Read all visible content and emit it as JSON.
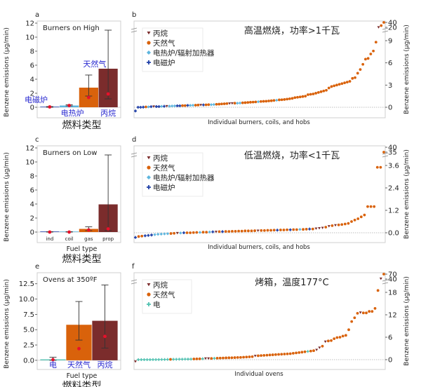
{
  "colors": {
    "propane": "#7b2c2c",
    "gas": "#d9620b",
    "electric": "#5fb6de",
    "induction": "#1f3fa8",
    "oven_electric": "#4fc1b0",
    "median": "#e8102a",
    "cat_label": "#2a2ad0"
  },
  "chart_data": [
    {
      "panel": "a",
      "type": "bar",
      "title": "Burners on High",
      "ylabel": "Benzene emissions (µg/min)",
      "xlabel_cn": "燃料类型",
      "xlabel": "",
      "ylim": [
        -1.5,
        12.3
      ],
      "yticks": [
        0,
        2,
        4,
        6,
        8,
        10,
        12
      ],
      "categories": [
        "电磁炉",
        "电热炉",
        "天然气",
        "丙烷"
      ],
      "category_label_style": "cn",
      "values": [
        0.0,
        0.25,
        2.8,
        5.5
      ],
      "err_low": [
        0.0,
        0.2,
        1.6,
        1.2
      ],
      "err_high": [
        0.1,
        0.35,
        4.6,
        11.0
      ],
      "medians": [
        0.05,
        0.25,
        1.4,
        1.9
      ],
      "bar_colors": [
        "induction",
        "electric",
        "gas",
        "propane"
      ]
    },
    {
      "panel": "b",
      "type": "scatter",
      "title": "高温燃烧，功率>1千瓦",
      "xlabel": "Individual burners, coils, and hobs",
      "ylabel": "Benzene emissions (µg/min)",
      "yticks_lower": [
        0,
        3,
        6,
        9
      ],
      "yticks_upper": [
        20,
        40
      ],
      "legend": [
        "丙烷",
        "天然气",
        "电热炉/辐射加热器",
        "电磁炉"
      ],
      "legend_keys": [
        "propane",
        "gas",
        "electric",
        "induction"
      ],
      "points": [
        [
          -0.5,
          "induction"
        ],
        [
          0,
          "induction"
        ],
        [
          0,
          "induction"
        ],
        [
          0.02,
          "induction"
        ],
        [
          0.05,
          "gas"
        ],
        [
          0.05,
          "electric"
        ],
        [
          0.08,
          "induction"
        ],
        [
          0.1,
          "propane"
        ],
        [
          0.1,
          "induction"
        ],
        [
          0.1,
          "induction"
        ],
        [
          0.12,
          "electric"
        ],
        [
          0.13,
          "induction"
        ],
        [
          0.15,
          "propane"
        ],
        [
          0.15,
          "electric"
        ],
        [
          0.17,
          "electric"
        ],
        [
          0.18,
          "electric"
        ],
        [
          0.2,
          "induction"
        ],
        [
          0.2,
          "induction"
        ],
        [
          0.22,
          "gas"
        ],
        [
          0.22,
          "gas"
        ],
        [
          0.25,
          "induction"
        ],
        [
          0.25,
          "electric"
        ],
        [
          0.27,
          "electric"
        ],
        [
          0.28,
          "gas"
        ],
        [
          0.3,
          "gas"
        ],
        [
          0.3,
          "propane"
        ],
        [
          0.32,
          "induction"
        ],
        [
          0.33,
          "gas"
        ],
        [
          0.35,
          "gas"
        ],
        [
          0.35,
          "electric"
        ],
        [
          0.37,
          "electric"
        ],
        [
          0.4,
          "gas"
        ],
        [
          0.42,
          "gas"
        ],
        [
          0.45,
          "gas"
        ],
        [
          0.47,
          "gas"
        ],
        [
          0.5,
          "gas"
        ],
        [
          0.5,
          "propane"
        ],
        [
          0.52,
          "propane"
        ],
        [
          0.55,
          "gas"
        ],
        [
          0.55,
          "electric"
        ],
        [
          0.57,
          "electric"
        ],
        [
          0.6,
          "gas"
        ],
        [
          0.62,
          "gas"
        ],
        [
          0.65,
          "gas"
        ],
        [
          0.68,
          "gas"
        ],
        [
          0.7,
          "gas"
        ],
        [
          0.72,
          "gas"
        ],
        [
          0.75,
          "electric"
        ],
        [
          0.78,
          "gas"
        ],
        [
          0.8,
          "gas"
        ],
        [
          0.82,
          "gas"
        ],
        [
          0.85,
          "gas"
        ],
        [
          0.88,
          "gas"
        ],
        [
          0.92,
          "gas"
        ],
        [
          0.95,
          "electric"
        ],
        [
          1.0,
          "gas"
        ],
        [
          1.02,
          "gas"
        ],
        [
          1.05,
          "gas"
        ],
        [
          1.1,
          "gas"
        ],
        [
          1.15,
          "gas"
        ],
        [
          1.2,
          "gas"
        ],
        [
          1.3,
          "gas"
        ],
        [
          1.35,
          "gas"
        ],
        [
          1.4,
          "gas"
        ],
        [
          1.45,
          "gas"
        ],
        [
          1.5,
          "gas"
        ],
        [
          1.7,
          "gas"
        ],
        [
          1.75,
          "gas"
        ],
        [
          1.8,
          "gas"
        ],
        [
          1.9,
          "gas"
        ],
        [
          2.0,
          "gas"
        ],
        [
          2.1,
          "gas"
        ],
        [
          2.2,
          "gas"
        ],
        [
          2.3,
          "gas"
        ],
        [
          2.6,
          "gas"
        ],
        [
          2.8,
          "gas"
        ],
        [
          2.9,
          "gas"
        ],
        [
          3.0,
          "gas"
        ],
        [
          3.1,
          "gas"
        ],
        [
          3.2,
          "gas"
        ],
        [
          3.3,
          "gas"
        ],
        [
          3.4,
          "gas"
        ],
        [
          3.5,
          "gas"
        ],
        [
          3.9,
          "gas"
        ],
        [
          4.0,
          "gas"
        ],
        [
          4.6,
          "gas"
        ],
        [
          5.1,
          "gas"
        ],
        [
          5.8,
          "gas"
        ],
        [
          6.5,
          "gas"
        ],
        [
          6.6,
          "gas"
        ],
        [
          7.2,
          "gas"
        ],
        [
          7.6,
          "gas"
        ],
        [
          8.8,
          "gas"
        ],
        [
          20,
          "propane"
        ],
        [
          27,
          "gas"
        ],
        [
          40,
          "gas"
        ]
      ]
    },
    {
      "panel": "c",
      "type": "bar",
      "title": "Burners on Low",
      "ylabel": "Benzene emissions (µg/min)",
      "xlabel": "Fuel type",
      "xlabel_cn": "燃料类型",
      "ylim": [
        -1.5,
        12.3
      ],
      "yticks": [
        0,
        2,
        4,
        6,
        8,
        10,
        12
      ],
      "categories": [
        "ind",
        "coil",
        "gas",
        "prop"
      ],
      "category_label_style": "en",
      "values": [
        0.0,
        0.0,
        0.45,
        3.95
      ],
      "err_low": [
        0.0,
        0.0,
        0.2,
        0.2
      ],
      "err_high": [
        0.05,
        0.05,
        0.75,
        11.0
      ],
      "medians": [
        0.0,
        0.0,
        0.3,
        0.45
      ],
      "bar_colors": [
        "induction",
        "electric",
        "gas",
        "propane"
      ]
    },
    {
      "panel": "d",
      "type": "scatter",
      "title": "低温燃烧，功率<1千瓦",
      "xlabel": "Individual burners, coils, and hobs",
      "ylabel": "Benzene emissions (µg/min)",
      "yticks_lower": [
        "0.0",
        "1.2",
        "2.4",
        "3.6"
      ],
      "yticks_upper": [
        35,
        40
      ],
      "legend": [
        "丙烷",
        "天然气",
        "电热炉/辐射加热器",
        "电磁炉"
      ],
      "legend_keys": [
        "propane",
        "gas",
        "electric",
        "induction"
      ],
      "points": [
        [
          -0.25,
          "induction"
        ],
        [
          -0.2,
          "gas"
        ],
        [
          -0.18,
          "gas"
        ],
        [
          -0.16,
          "induction"
        ],
        [
          -0.14,
          "induction"
        ],
        [
          -0.12,
          "induction"
        ],
        [
          -0.1,
          "electric"
        ],
        [
          -0.08,
          "electric"
        ],
        [
          -0.07,
          "electric"
        ],
        [
          -0.06,
          "electric"
        ],
        [
          -0.05,
          "electric"
        ],
        [
          -0.04,
          "gas"
        ],
        [
          -0.03,
          "gas"
        ],
        [
          -0.02,
          "propane"
        ],
        [
          -0.01,
          "electric"
        ],
        [
          0,
          "induction"
        ],
        [
          0,
          "gas"
        ],
        [
          0,
          "gas"
        ],
        [
          0.01,
          "gas"
        ],
        [
          0.02,
          "gas"
        ],
        [
          0.02,
          "electric"
        ],
        [
          0.03,
          "gas"
        ],
        [
          0.03,
          "gas"
        ],
        [
          0.04,
          "electric"
        ],
        [
          0.05,
          "induction"
        ],
        [
          0.05,
          "propane"
        ],
        [
          0.06,
          "gas"
        ],
        [
          0.06,
          "induction"
        ],
        [
          0.07,
          "gas"
        ],
        [
          0.07,
          "gas"
        ],
        [
          0.08,
          "gas"
        ],
        [
          0.08,
          "gas"
        ],
        [
          0.09,
          "gas"
        ],
        [
          0.09,
          "gas"
        ],
        [
          0.1,
          "gas"
        ],
        [
          0.1,
          "gas"
        ],
        [
          0.1,
          "gas"
        ],
        [
          0.11,
          "gas"
        ],
        [
          0.11,
          "propane"
        ],
        [
          0.12,
          "gas"
        ],
        [
          0.12,
          "gas"
        ],
        [
          0.13,
          "gas"
        ],
        [
          0.13,
          "gas"
        ],
        [
          0.14,
          "gas"
        ],
        [
          0.14,
          "induction"
        ],
        [
          0.15,
          "gas"
        ],
        [
          0.15,
          "gas"
        ],
        [
          0.16,
          "gas"
        ],
        [
          0.16,
          "induction"
        ],
        [
          0.17,
          "gas"
        ],
        [
          0.17,
          "gas"
        ],
        [
          0.18,
          "electric"
        ],
        [
          0.18,
          "gas"
        ],
        [
          0.19,
          "gas"
        ],
        [
          0.2,
          "induction"
        ],
        [
          0.2,
          "gas"
        ],
        [
          0.22,
          "propane"
        ],
        [
          0.24,
          "propane"
        ],
        [
          0.26,
          "propane"
        ],
        [
          0.3,
          "gas"
        ],
        [
          0.35,
          "propane"
        ],
        [
          0.38,
          "gas"
        ],
        [
          0.4,
          "propane"
        ],
        [
          0.42,
          "gas"
        ],
        [
          0.44,
          "gas"
        ],
        [
          0.47,
          "gas"
        ],
        [
          0.5,
          "gas"
        ],
        [
          0.6,
          "gas"
        ],
        [
          0.68,
          "gas"
        ],
        [
          0.75,
          "gas"
        ],
        [
          0.85,
          "gas"
        ],
        [
          0.95,
          "gas"
        ],
        [
          1.4,
          "gas"
        ],
        [
          1.4,
          "gas"
        ],
        [
          1.4,
          "gas"
        ],
        [
          3.5,
          "gas"
        ],
        [
          3.5,
          "gas"
        ],
        [
          35,
          "gas"
        ]
      ]
    },
    {
      "panel": "e",
      "type": "bar",
      "title": "Ovens at 350ºF",
      "ylabel": "Benzene emissions (µg/min)",
      "xlabel": "Fuel type",
      "xlabel_cn": "燃料类型",
      "ylim": [
        -1.5,
        14.3
      ],
      "yticks": [
        "0.0",
        "2.5",
        "5.0",
        "7.5",
        "10.0",
        "12.5"
      ],
      "categories": [
        "电",
        "天然气",
        "丙烷"
      ],
      "category_label_style": "cn",
      "values": [
        0.15,
        5.8,
        6.45
      ],
      "err_low": [
        0.0,
        3.3,
        2.0
      ],
      "err_high": [
        0.5,
        9.6,
        12.3
      ],
      "medians": [
        0.1,
        1.9,
        3.9
      ],
      "bar_colors": [
        "oven_electric",
        "gas",
        "propane"
      ]
    },
    {
      "panel": "f",
      "type": "scatter",
      "title": "烤箱，温度177°C",
      "xlabel": "Individual ovens",
      "ylabel": "Benzene emissions (µg/min)",
      "yticks_lower": [
        0,
        6,
        12,
        18
      ],
      "yticks_upper": [
        40,
        70
      ],
      "legend": [
        "丙烷",
        "天然气",
        "电"
      ],
      "legend_keys": [
        "propane",
        "gas",
        "oven_electric"
      ],
      "points": [
        [
          -0.5,
          "propane"
        ],
        [
          0,
          "oven_electric"
        ],
        [
          0,
          "oven_electric"
        ],
        [
          0,
          "oven_electric"
        ],
        [
          0,
          "oven_electric"
        ],
        [
          0,
          "oven_electric"
        ],
        [
          0.02,
          "oven_electric"
        ],
        [
          0.02,
          "oven_electric"
        ],
        [
          0.03,
          "oven_electric"
        ],
        [
          0.04,
          "oven_electric"
        ],
        [
          0.05,
          "oven_electric"
        ],
        [
          0.06,
          "oven_electric"
        ],
        [
          0.08,
          "gas"
        ],
        [
          0.1,
          "oven_electric"
        ],
        [
          0.1,
          "oven_electric"
        ],
        [
          0.12,
          "oven_electric"
        ],
        [
          0.12,
          "oven_electric"
        ],
        [
          0.13,
          "oven_electric"
        ],
        [
          0.14,
          "oven_electric"
        ],
        [
          0.15,
          "oven_electric"
        ],
        [
          0.18,
          "gas"
        ],
        [
          0.2,
          "gas"
        ],
        [
          0.22,
          "gas"
        ],
        [
          0.25,
          "oven_electric"
        ],
        [
          0.3,
          "propane"
        ],
        [
          0.3,
          "propane"
        ],
        [
          0.32,
          "gas"
        ],
        [
          0.35,
          "oven_electric"
        ],
        [
          0.4,
          "gas"
        ],
        [
          0.42,
          "gas"
        ],
        [
          0.45,
          "gas"
        ],
        [
          0.48,
          "gas"
        ],
        [
          0.5,
          "gas"
        ],
        [
          0.52,
          "gas"
        ],
        [
          0.55,
          "gas"
        ],
        [
          0.58,
          "gas"
        ],
        [
          0.6,
          "gas"
        ],
        [
          0.65,
          "gas"
        ],
        [
          0.7,
          "gas"
        ],
        [
          0.75,
          "gas"
        ],
        [
          0.8,
          "gas"
        ],
        [
          1.0,
          "propane"
        ],
        [
          1.05,
          "gas"
        ],
        [
          1.1,
          "gas"
        ],
        [
          1.15,
          "gas"
        ],
        [
          1.2,
          "gas"
        ],
        [
          1.25,
          "gas"
        ],
        [
          1.3,
          "gas"
        ],
        [
          1.35,
          "gas"
        ],
        [
          1.4,
          "gas"
        ],
        [
          1.45,
          "gas"
        ],
        [
          1.5,
          "gas"
        ],
        [
          1.55,
          "gas"
        ],
        [
          1.6,
          "gas"
        ],
        [
          1.7,
          "gas"
        ],
        [
          1.8,
          "gas"
        ],
        [
          1.9,
          "gas"
        ],
        [
          2.0,
          "gas"
        ],
        [
          2.1,
          "gas"
        ],
        [
          2.2,
          "oven_electric"
        ],
        [
          2.3,
          "gas"
        ],
        [
          2.4,
          "gas"
        ],
        [
          2.6,
          "propane"
        ],
        [
          3.2,
          "propane"
        ],
        [
          3.6,
          "gas"
        ],
        [
          4.8,
          "propane"
        ],
        [
          5.0,
          "gas"
        ],
        [
          5.1,
          "gas"
        ],
        [
          5.6,
          "gas"
        ],
        [
          5.9,
          "gas"
        ],
        [
          6.0,
          "gas"
        ],
        [
          6.3,
          "gas"
        ],
        [
          6.5,
          "gas"
        ],
        [
          8.0,
          "gas"
        ],
        [
          10.2,
          "gas"
        ],
        [
          11.2,
          "gas"
        ],
        [
          12.4,
          "gas"
        ],
        [
          12.6,
          "propane"
        ],
        [
          12.5,
          "gas"
        ],
        [
          12.5,
          "gas"
        ],
        [
          12.9,
          "gas"
        ],
        [
          12.9,
          "gas"
        ],
        [
          13.7,
          "gas"
        ],
        [
          18.5,
          "gas"
        ],
        [
          42,
          "propane"
        ],
        [
          70,
          "gas"
        ]
      ]
    }
  ],
  "panel_letters": [
    "a",
    "b",
    "c",
    "d",
    "e",
    "f"
  ]
}
